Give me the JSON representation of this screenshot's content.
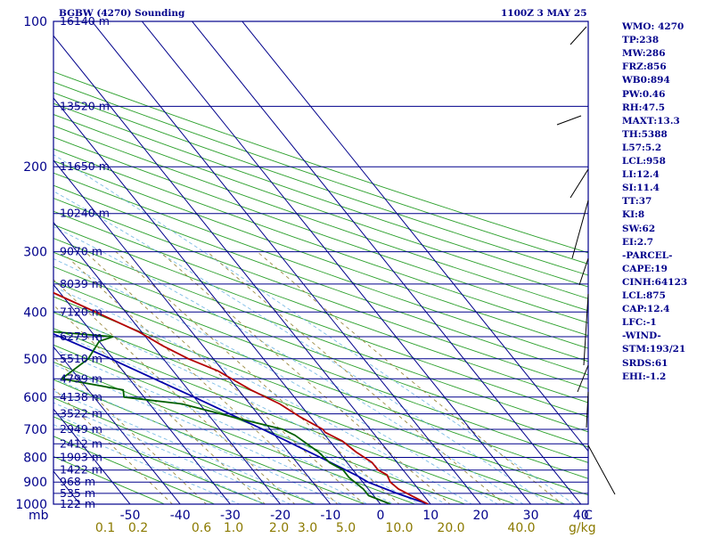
{
  "header": {
    "station": "BGBW (4270) Sounding",
    "time": "1100Z  3 MAY 25"
  },
  "indices": [
    "WMO: 4270",
    "TP:238",
    "MW:286",
    "FRZ:856",
    "WB0:894",
    "PW:0.46",
    "RH:47.5",
    "MAXT:13.3",
    "TH:5388",
    "L57:5.2",
    "LCL:958",
    "LI:12.4",
    "SI:11.4",
    "TT:37",
    "KI:8",
    "SW:62",
    "EI:2.7",
    "-PARCEL-",
    "CAPE:19",
    "CINH:64123",
    "LCL:875",
    "CAP:12.4",
    "LFC:-1",
    "-WIND-",
    "STM:193/21",
    "SRDS:61",
    "EHI:-1.2"
  ],
  "colors": {
    "frame": "#00008b",
    "isobar": "#00008b",
    "isotherm": "#00008b",
    "dry_adiabat": "#2ca02c",
    "moist_adiabat": "#7dbde6",
    "mixing_ratio": "#9a8a40",
    "temperature": "#b40000",
    "dewpoint": "#006000",
    "parcel": "#0000aa",
    "mixing_label": "#8b7a00",
    "wind": "#000000"
  },
  "chart_data": {
    "type": "skew-t",
    "pressure_axis": {
      "unit_label": "mb",
      "ticks": [
        100,
        200,
        300,
        400,
        500,
        600,
        700,
        800,
        900,
        1000
      ],
      "range": [
        100,
        1000
      ],
      "scale": "log"
    },
    "temperature_axis": {
      "unit_label": "C",
      "ticks": [
        -50,
        -40,
        -30,
        -20,
        -10,
        0,
        10,
        20,
        30,
        40
      ],
      "labels": [
        "-50",
        "-40",
        "-30",
        "-20",
        "-10",
        "0",
        "10",
        "20",
        "30",
        "40",
        "C"
      ]
    },
    "mixing_ratio_axis": {
      "unit_label": "g/kg",
      "labels": [
        "0.1",
        "0.2",
        "0.6",
        "1.0",
        "2.0",
        "3.0",
        "5.0",
        "10.0",
        "20.0",
        "40.0"
      ]
    },
    "height_labels": [
      {
        "p": 100,
        "text": "16140 m"
      },
      {
        "p": 150,
        "text": "13520 m"
      },
      {
        "p": 200,
        "text": "11650 m"
      },
      {
        "p": 250,
        "text": "10240 m"
      },
      {
        "p": 300,
        "text": "9070 m"
      },
      {
        "p": 350,
        "text": "8039 m"
      },
      {
        "p": 400,
        "text": "7120 m"
      },
      {
        "p": 450,
        "text": "6279 m"
      },
      {
        "p": 500,
        "text": "5510 m"
      },
      {
        "p": 550,
        "text": "4799 m"
      },
      {
        "p": 600,
        "text": "4138 m"
      },
      {
        "p": 650,
        "text": "3522 m"
      },
      {
        "p": 700,
        "text": "2949 m"
      },
      {
        "p": 750,
        "text": "2412 m"
      },
      {
        "p": 800,
        "text": "1903 m"
      },
      {
        "p": 850,
        "text": "1422 m"
      },
      {
        "p": 900,
        "text": "968 m"
      },
      {
        "p": 950,
        "text": "535 m"
      },
      {
        "p": 1000,
        "text": "122 m"
      }
    ],
    "temperature_profile": [
      {
        "p": 1000,
        "t": 9.5
      },
      {
        "p": 970,
        "t": 8.0
      },
      {
        "p": 930,
        "t": 6.0
      },
      {
        "p": 900,
        "t": 5.5
      },
      {
        "p": 870,
        "t": 6.0
      },
      {
        "p": 850,
        "t": 5.0
      },
      {
        "p": 820,
        "t": 5.0
      },
      {
        "p": 780,
        "t": 3.5
      },
      {
        "p": 740,
        "t": 2.5
      },
      {
        "p": 710,
        "t": 0.5
      },
      {
        "p": 700,
        "t": 0.5
      },
      {
        "p": 660,
        "t": -2.0
      },
      {
        "p": 620,
        "t": -4.0
      },
      {
        "p": 580,
        "t": -7.5
      },
      {
        "p": 530,
        "t": -11.0
      },
      {
        "p": 500,
        "t": -15.0
      },
      {
        "p": 470,
        "t": -18.0
      },
      {
        "p": 440,
        "t": -20.5
      },
      {
        "p": 400,
        "t": -26.0
      },
      {
        "p": 370,
        "t": -30.5
      },
      {
        "p": 340,
        "t": -35.5
      },
      {
        "p": 300,
        "t": -42.0
      },
      {
        "p": 280,
        "t": -45.5
      },
      {
        "p": 250,
        "t": -50.0
      },
      {
        "p": 238,
        "t": -52.0
      },
      {
        "p": 230,
        "t": -50.5
      },
      {
        "p": 220,
        "t": -48.5
      },
      {
        "p": 210,
        "t": -46.0
      },
      {
        "p": 200,
        "t": -44.5
      },
      {
        "p": 180,
        "t": -42.0
      },
      {
        "p": 160,
        "t": -42.0
      },
      {
        "p": 140,
        "t": -41.0
      },
      {
        "p": 120,
        "t": -40.0
      },
      {
        "p": 100,
        "t": -38.5
      }
    ],
    "dewpoint_profile": [
      {
        "p": 1000,
        "td": 2.0
      },
      {
        "p": 960,
        "td": -1.0
      },
      {
        "p": 930,
        "td": -1.0
      },
      {
        "p": 880,
        "td": -2.0
      },
      {
        "p": 850,
        "td": -2.0
      },
      {
        "p": 820,
        "td": -3.5
      },
      {
        "p": 780,
        "td": -4.0
      },
      {
        "p": 720,
        "td": -6.0
      },
      {
        "p": 700,
        "td": -7.5
      },
      {
        "p": 660,
        "td": -15.5
      },
      {
        "p": 620,
        "td": -23.5
      },
      {
        "p": 600,
        "td": -34.0
      },
      {
        "p": 580,
        "td": -33.0
      },
      {
        "p": 550,
        "td": -43.5
      },
      {
        "p": 500,
        "td": -35.0
      },
      {
        "p": 460,
        "td": -30.0
      },
      {
        "p": 450,
        "td": -26.5
      },
      {
        "p": 430,
        "td": -48.0
      },
      {
        "p": 400,
        "td": -43.0
      },
      {
        "p": 380,
        "td": -38.0
      },
      {
        "p": 340,
        "td": -37.0
      },
      {
        "p": 320,
        "td": -42.0
      },
      {
        "p": 300,
        "td": -44.0
      },
      {
        "p": 280,
        "td": -53.0
      },
      {
        "p": 250,
        "td": -58.0
      },
      {
        "p": 230,
        "td": -63.0
      },
      {
        "p": 215,
        "td": -67.0
      },
      {
        "p": 200,
        "td": -61.0
      },
      {
        "p": 150,
        "td": -67.0
      },
      {
        "p": 120,
        "td": -68.0
      },
      {
        "p": 100,
        "td": -69.0
      }
    ],
    "parcel_profile": [
      {
        "p": 1000,
        "t": 9.5
      },
      {
        "p": 950,
        "t": 5.0
      },
      {
        "p": 900,
        "t": 1.0
      },
      {
        "p": 875,
        "t": 0.0
      },
      {
        "p": 800,
        "t": -4.5
      },
      {
        "p": 700,
        "t": -11.5
      },
      {
        "p": 600,
        "t": -20.0
      },
      {
        "p": 500,
        "t": -30.5
      },
      {
        "p": 400,
        "t": -44.5
      },
      {
        "p": 300,
        "t": -61.5
      },
      {
        "p": 250,
        "t": -71.5
      },
      {
        "p": 200,
        "t": -82.0
      },
      {
        "p": 150,
        "t": -94.0
      },
      {
        "p": 100,
        "t": -110.0
      }
    ],
    "grid": true
  }
}
